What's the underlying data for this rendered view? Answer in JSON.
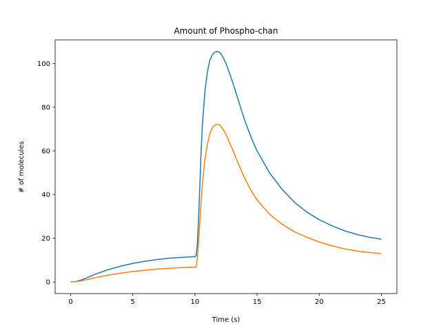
{
  "chart_data": {
    "type": "line",
    "title": "Amount of Phospho-chan",
    "xlabel": "Time (s)",
    "ylabel": "# of molecules",
    "xlim": [
      -1.25,
      26.25
    ],
    "ylim": [
      -5.3,
      110.8
    ],
    "xticks": [
      0,
      5,
      10,
      15,
      20,
      25
    ],
    "yticks": [
      0,
      20,
      40,
      60,
      80,
      100
    ],
    "grid": false,
    "legend": "none",
    "series": [
      {
        "color": "#1f77b4",
        "x": [
          0,
          0.5,
          1,
          1.5,
          2,
          3,
          4,
          5,
          6,
          7,
          8,
          9,
          10,
          10.1,
          10.2,
          10.3,
          10.4,
          10.5,
          10.6,
          10.8,
          11,
          11.2,
          11.4,
          11.6,
          11.8,
          12,
          12.2,
          12.5,
          13,
          13.5,
          14,
          14.5,
          15,
          16,
          17,
          18,
          19,
          20,
          21,
          22,
          23,
          24,
          25
        ],
        "y": [
          0,
          0.3,
          1.2,
          2.4,
          3.6,
          5.6,
          7.2,
          8.5,
          9.5,
          10.3,
          10.9,
          11.3,
          11.6,
          12.0,
          18,
          30,
          45,
          60,
          72,
          87,
          96,
          101.5,
          104,
          105.2,
          105.5,
          105,
          103.5,
          100,
          92,
          83,
          74,
          66.5,
          60,
          50,
          42.5,
          36.5,
          32,
          28.5,
          25.8,
          23.5,
          21.8,
          20.5,
          19.6
        ]
      },
      {
        "color": "#ff7f0e",
        "x": [
          0,
          0.5,
          1,
          1.5,
          2,
          3,
          4,
          5,
          6,
          7,
          8,
          9,
          10,
          10.1,
          10.2,
          10.3,
          10.4,
          10.5,
          10.6,
          10.8,
          11,
          11.2,
          11.4,
          11.6,
          11.8,
          12,
          12.2,
          12.5,
          13,
          13.5,
          14,
          14.5,
          15,
          16,
          17,
          18,
          19,
          20,
          21,
          22,
          23,
          24,
          25
        ],
        "y": [
          0,
          0.2,
          0.7,
          1.3,
          2.0,
          3.1,
          4.0,
          4.8,
          5.4,
          5.9,
          6.3,
          6.6,
          6.8,
          7.0,
          11,
          19,
          28,
          37,
          45,
          56,
          63,
          68,
          70.6,
          71.8,
          72.2,
          71.8,
          70.5,
          67.5,
          61,
          54,
          47.5,
          42,
          37.5,
          31,
          26.5,
          23,
          20.5,
          18.3,
          16.6,
          15.2,
          14.2,
          13.5,
          13.0
        ]
      }
    ]
  }
}
